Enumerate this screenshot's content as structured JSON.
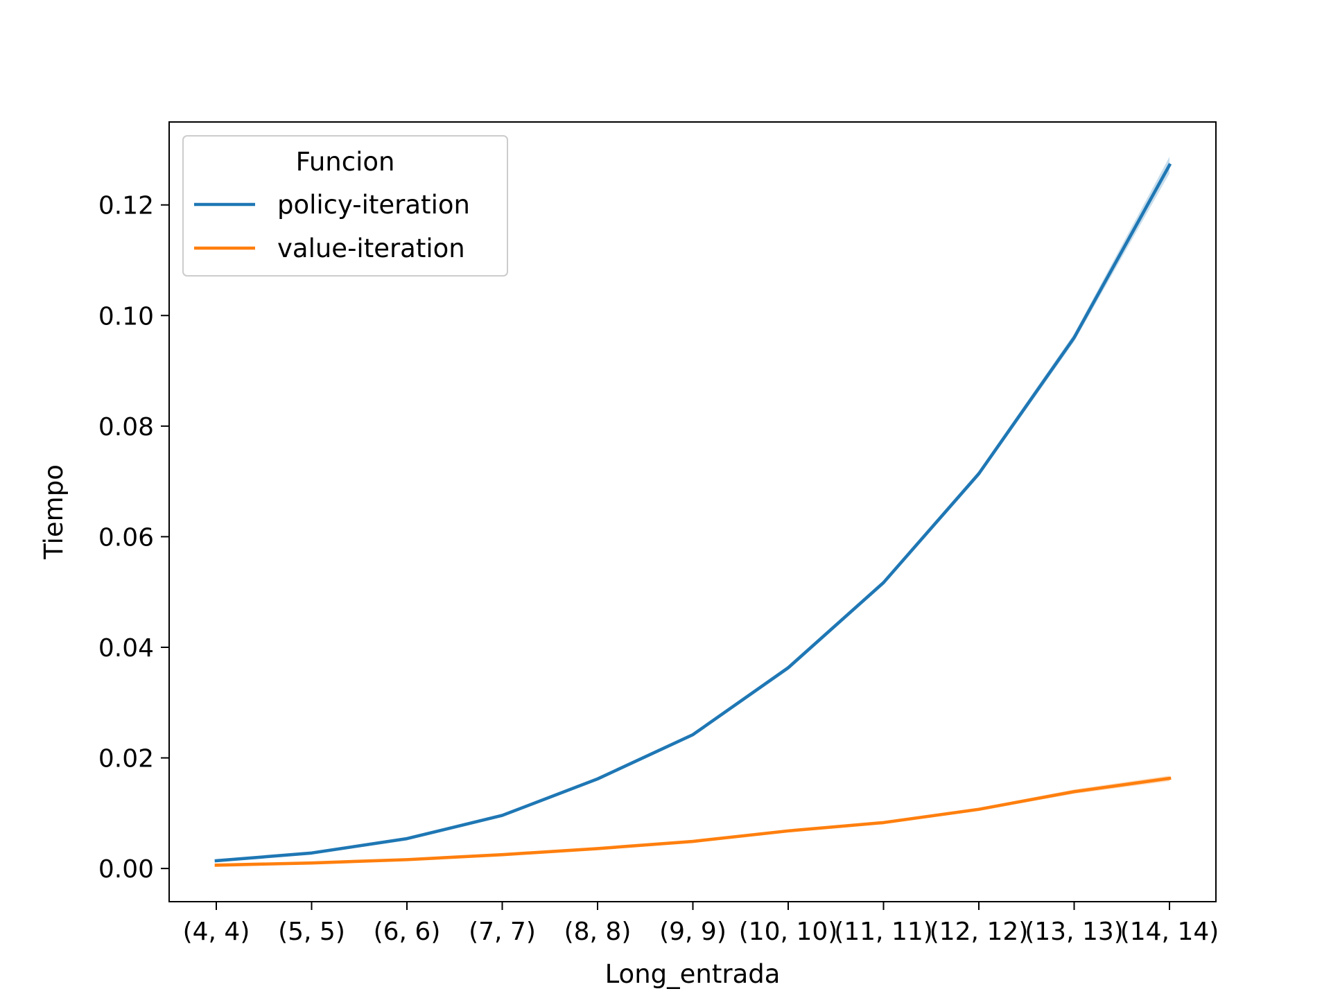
{
  "chart_data": {
    "type": "line",
    "xlabel": "Long_entrada",
    "ylabel": "Tiempo",
    "categories": [
      "(4, 4)",
      "(5, 5)",
      "(6, 6)",
      "(7, 7)",
      "(8, 8)",
      "(9, 9)",
      "(10, 10)",
      "(11, 11)",
      "(12, 12)",
      "(13, 13)",
      "(14, 14)"
    ],
    "ylim": [
      -0.006,
      0.135
    ],
    "yticks": [
      0.0,
      0.02,
      0.04,
      0.06,
      0.08,
      0.1,
      0.12
    ],
    "ytick_labels": [
      "0.00",
      "0.02",
      "0.04",
      "0.06",
      "0.08",
      "0.10",
      "0.12"
    ],
    "grid": false,
    "legend": {
      "title": "Funcion",
      "position": "top-left"
    },
    "series": [
      {
        "name": "policy-iteration",
        "color": "#1f77b4",
        "values": [
          0.0014,
          0.0028,
          0.0054,
          0.0096,
          0.0162,
          0.0242,
          0.0363,
          0.0517,
          0.0714,
          0.096,
          0.1272
        ],
        "band": [
          0.0002,
          0.0002,
          0.0002,
          0.0002,
          0.0003,
          0.0003,
          0.0004,
          0.0004,
          0.0005,
          0.0007,
          0.0015
        ]
      },
      {
        "name": "value-iteration",
        "color": "#ff7f0e",
        "values": [
          0.0006,
          0.001,
          0.0016,
          0.0025,
          0.0036,
          0.0049,
          0.0068,
          0.0083,
          0.0107,
          0.0139,
          0.0163
        ],
        "band": [
          0.0001,
          0.0001,
          0.0001,
          0.0001,
          0.0001,
          0.0001,
          0.0002,
          0.0002,
          0.0002,
          0.0004,
          0.0005
        ]
      }
    ]
  }
}
